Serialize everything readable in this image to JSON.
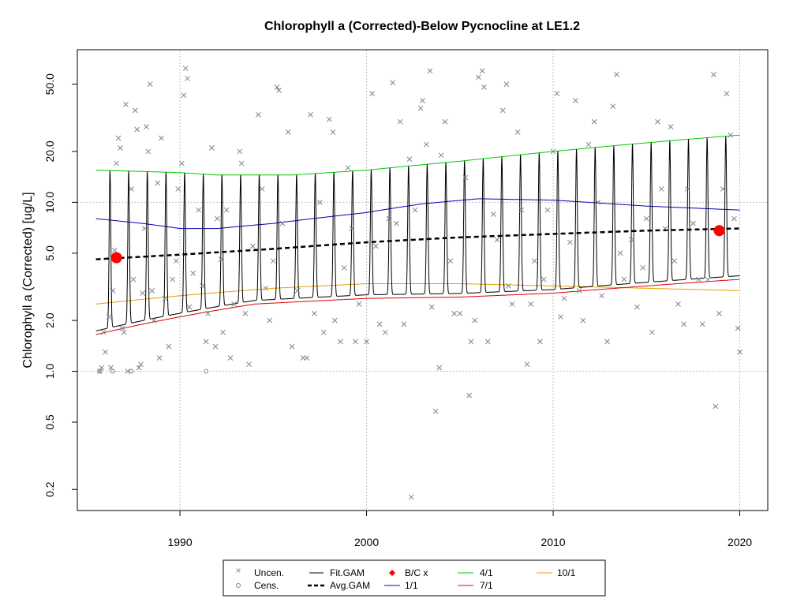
{
  "chart_data": {
    "type": "scatter",
    "title": "Chlorophyll a (Corrected)-Below Pycnocline at LE1.2",
    "xlabel": "",
    "ylabel": "Chlorophyll a (Corrected) [ug/L]",
    "xlim": [
      1984.5,
      2021.5
    ],
    "ylim": [
      0.15,
      80
    ],
    "y_scale": "log",
    "x_ticks": [
      1990,
      2000,
      2010,
      2020
    ],
    "x_tick_labels": [
      "1990",
      "2000",
      "2010",
      "2020"
    ],
    "y_ticks": [
      0.2,
      0.5,
      1.0,
      2.0,
      5.0,
      10.0,
      20.0,
      50.0
    ],
    "y_tick_labels": [
      "0.2",
      "0.5",
      "1.0",
      "2.0",
      "5.0",
      "10.0",
      "20.0",
      "50.0"
    ],
    "grid": true,
    "grid_x": [
      1990,
      2000,
      2010,
      2020
    ],
    "grid_y": [
      1.0,
      10.0
    ],
    "colors": {
      "points": "#7a8593",
      "fit_gam": "#000000",
      "avg_gam": "#000000",
      "bc_points": "#ff0000",
      "q_1_1": "#0000bb",
      "q_4_1": "#00cc00",
      "q_7_1": "#dd0000",
      "q_10_1": "#e6a000",
      "grid": "#c0c0c0"
    },
    "legend": {
      "placement": "bottom-center",
      "entries": [
        {
          "label": "Uncen.",
          "symbol": "x"
        },
        {
          "label": "Cens.",
          "symbol": "circle"
        },
        {
          "label": "Fit.GAM",
          "symbol": "line"
        },
        {
          "label": "Avg.GAM",
          "symbol": "dashed"
        },
        {
          "label": "B/C x",
          "symbol": "diamond"
        },
        {
          "label": "1/1",
          "symbol": "line"
        },
        {
          "label": "4/1",
          "symbol": "line"
        },
        {
          "label": "7/1",
          "symbol": "line"
        },
        {
          "label": "10/1",
          "symbol": "line"
        }
      ]
    },
    "series": [
      {
        "name": "4/1",
        "x": [
          1985.5,
          1990,
          1992,
          1996,
          2000,
          2005,
          2010,
          2015,
          2020
        ],
        "y": [
          15.5,
          15.0,
          14.5,
          14.5,
          15.5,
          17.5,
          20.0,
          22.5,
          25.0
        ]
      },
      {
        "name": "1/1",
        "x": [
          1985.5,
          1988,
          1990,
          1992,
          1995,
          2000,
          2003,
          2006,
          2010,
          2015,
          2020
        ],
        "y": [
          8.0,
          7.5,
          7.0,
          7.0,
          7.5,
          8.7,
          9.8,
          10.5,
          10.3,
          9.5,
          9.0
        ]
      },
      {
        "name": "Avg.GAM",
        "x": [
          1985.5,
          1990,
          1995,
          2000,
          2005,
          2010,
          2015,
          2020
        ],
        "y": [
          4.6,
          4.9,
          5.3,
          5.8,
          6.2,
          6.5,
          6.8,
          7.0
        ]
      },
      {
        "name": "10/1",
        "x": [
          1985.5,
          1990,
          1995,
          2000,
          2005,
          2010,
          2015,
          2020
        ],
        "y": [
          2.5,
          2.8,
          3.1,
          3.3,
          3.3,
          3.2,
          3.1,
          3.0
        ]
      },
      {
        "name": "7/1",
        "x": [
          1985.5,
          1988,
          1990,
          1994,
          2000,
          2005,
          2010,
          2015,
          2020
        ],
        "y": [
          1.65,
          1.9,
          2.1,
          2.5,
          2.7,
          2.75,
          2.9,
          3.2,
          3.5
        ]
      },
      {
        "name": "Fit.GAM",
        "pattern": "seasonal cycle between 7/1 and 4/1 curves, one cycle per year",
        "x_start": 1985.5,
        "x_end": 2020
      }
    ],
    "bc_points": [
      {
        "x": 1986.6,
        "y": 4.7
      },
      {
        "x": 2018.9,
        "y": 6.8
      }
    ],
    "points": [
      [
        1985.7,
        1.0
      ],
      [
        1985.8,
        1.05
      ],
      [
        1985.9,
        1.7
      ],
      [
        1986.0,
        1.3
      ],
      [
        1986.2,
        2.1
      ],
      [
        1986.3,
        1.05
      ],
      [
        1986.4,
        3.0
      ],
      [
        1986.5,
        5.2
      ],
      [
        1986.6,
        17
      ],
      [
        1986.7,
        24
      ],
      [
        1986.8,
        21
      ],
      [
        1986.9,
        1.8
      ],
      [
        1987.0,
        1.7
      ],
      [
        1987.1,
        38
      ],
      [
        1987.2,
        1.0
      ],
      [
        1987.4,
        12
      ],
      [
        1987.5,
        3.5
      ],
      [
        1987.6,
        35
      ],
      [
        1987.7,
        27
      ],
      [
        1987.8,
        1.05
      ],
      [
        1987.9,
        1.1
      ],
      [
        1988.0,
        2.9
      ],
      [
        1988.1,
        7
      ],
      [
        1988.2,
        28
      ],
      [
        1988.3,
        20
      ],
      [
        1988.4,
        50
      ],
      [
        1988.5,
        3
      ],
      [
        1988.6,
        2
      ],
      [
        1988.8,
        13
      ],
      [
        1988.9,
        1.2
      ],
      [
        1989.0,
        24
      ],
      [
        1989.2,
        2.7
      ],
      [
        1989.4,
        1.4
      ],
      [
        1989.6,
        3.5
      ],
      [
        1989.8,
        4.5
      ],
      [
        1989.9,
        12
      ],
      [
        1990.1,
        17
      ],
      [
        1990.2,
        43
      ],
      [
        1990.3,
        62
      ],
      [
        1990.4,
        54
      ],
      [
        1990.5,
        2.4
      ],
      [
        1990.7,
        3.8
      ],
      [
        1991.0,
        9
      ],
      [
        1991.2,
        3.2
      ],
      [
        1991.4,
        1.5
      ],
      [
        1991.5,
        2.2
      ],
      [
        1991.7,
        21
      ],
      [
        1991.9,
        1.4
      ],
      [
        1992.0,
        8
      ],
      [
        1992.2,
        4.6
      ],
      [
        1992.3,
        1.7
      ],
      [
        1992.5,
        9
      ],
      [
        1992.7,
        1.2
      ],
      [
        1992.9,
        2.5
      ],
      [
        1993.2,
        20
      ],
      [
        1993.3,
        17
      ],
      [
        1993.5,
        2.2
      ],
      [
        1993.7,
        1.1
      ],
      [
        1993.9,
        5.5
      ],
      [
        1994.2,
        33
      ],
      [
        1994.4,
        12
      ],
      [
        1994.6,
        3.1
      ],
      [
        1994.8,
        2.0
      ],
      [
        1995.0,
        4.5
      ],
      [
        1995.2,
        48
      ],
      [
        1995.3,
        46
      ],
      [
        1995.5,
        7.5
      ],
      [
        1995.8,
        26
      ],
      [
        1996.0,
        1.4
      ],
      [
        1996.3,
        3.0
      ],
      [
        1996.6,
        1.2
      ],
      [
        1996.8,
        1.2
      ],
      [
        1997.0,
        33
      ],
      [
        1997.2,
        2.2
      ],
      [
        1997.5,
        10
      ],
      [
        1997.7,
        1.7
      ],
      [
        1998.0,
        31
      ],
      [
        1998.2,
        26
      ],
      [
        1998.3,
        2.0
      ],
      [
        1998.6,
        1.5
      ],
      [
        1998.8,
        4.1
      ],
      [
        1999.0,
        16
      ],
      [
        1999.2,
        7
      ],
      [
        1999.4,
        1.5
      ],
      [
        1999.6,
        2.5
      ],
      [
        2000.0,
        1.5
      ],
      [
        2000.3,
        44
      ],
      [
        2000.5,
        5.5
      ],
      [
        2000.7,
        1.9
      ],
      [
        2001.0,
        1.7
      ],
      [
        2001.2,
        8
      ],
      [
        2001.4,
        51
      ],
      [
        2001.6,
        7.5
      ],
      [
        2001.8,
        30
      ],
      [
        2002.0,
        1.9
      ],
      [
        2002.3,
        18
      ],
      [
        2002.4,
        0.18
      ],
      [
        2002.6,
        9
      ],
      [
        2002.9,
        36
      ],
      [
        2003.0,
        40
      ],
      [
        2003.2,
        22
      ],
      [
        2003.4,
        60
      ],
      [
        2003.5,
        2.4
      ],
      [
        2003.7,
        0.58
      ],
      [
        2003.9,
        1.05
      ],
      [
        2004.0,
        19
      ],
      [
        2004.2,
        30
      ],
      [
        2004.5,
        4.5
      ],
      [
        2004.7,
        2.2
      ],
      [
        2005.0,
        2.2
      ],
      [
        2005.3,
        14
      ],
      [
        2005.5,
        0.72
      ],
      [
        2005.6,
        1.5
      ],
      [
        2005.8,
        2.0
      ],
      [
        2006.0,
        55
      ],
      [
        2006.2,
        60
      ],
      [
        2006.3,
        48
      ],
      [
        2006.5,
        1.5
      ],
      [
        2006.8,
        8.5
      ],
      [
        2007.0,
        6
      ],
      [
        2007.3,
        35
      ],
      [
        2007.5,
        50
      ],
      [
        2007.6,
        3.2
      ],
      [
        2007.8,
        2.5
      ],
      [
        2008.1,
        26
      ],
      [
        2008.3,
        9
      ],
      [
        2008.6,
        1.1
      ],
      [
        2008.8,
        2.5
      ],
      [
        2009.0,
        4.5
      ],
      [
        2009.3,
        1.5
      ],
      [
        2009.5,
        3.5
      ],
      [
        2009.7,
        9
      ],
      [
        2010.0,
        20
      ],
      [
        2010.2,
        44
      ],
      [
        2010.4,
        2.1
      ],
      [
        2010.6,
        2.7
      ],
      [
        2010.9,
        5.8
      ],
      [
        2011.2,
        40
      ],
      [
        2011.4,
        3
      ],
      [
        2011.6,
        2.0
      ],
      [
        2011.9,
        22
      ],
      [
        2012.2,
        30
      ],
      [
        2012.4,
        10
      ],
      [
        2012.6,
        2.8
      ],
      [
        2012.9,
        1.5
      ],
      [
        2013.2,
        37
      ],
      [
        2013.4,
        57
      ],
      [
        2013.6,
        5
      ],
      [
        2013.8,
        3.5
      ],
      [
        2014.2,
        6
      ],
      [
        2014.5,
        2.4
      ],
      [
        2014.8,
        4.1
      ],
      [
        2015.0,
        8
      ],
      [
        2015.3,
        1.7
      ],
      [
        2015.6,
        30
      ],
      [
        2015.8,
        12
      ],
      [
        2016.0,
        7
      ],
      [
        2016.3,
        28
      ],
      [
        2016.5,
        4.5
      ],
      [
        2016.7,
        2.5
      ],
      [
        2017.0,
        1.9
      ],
      [
        2017.2,
        12
      ],
      [
        2017.5,
        7.5
      ],
      [
        2017.8,
        3.5
      ],
      [
        2018.0,
        1.9
      ],
      [
        2018.3,
        3.5
      ],
      [
        2018.6,
        57
      ],
      [
        2018.7,
        0.62
      ],
      [
        2018.9,
        2.2
      ],
      [
        2019.1,
        12
      ],
      [
        2019.3,
        44
      ],
      [
        2019.5,
        25
      ],
      [
        2019.7,
        8
      ],
      [
        2019.9,
        1.8
      ],
      [
        2020.0,
        1.3
      ]
    ],
    "censored_points": [
      [
        1985.7,
        1.0
      ],
      [
        1986.4,
        1.0
      ],
      [
        1987.4,
        1.0
      ],
      [
        1991.4,
        1.0
      ]
    ]
  }
}
